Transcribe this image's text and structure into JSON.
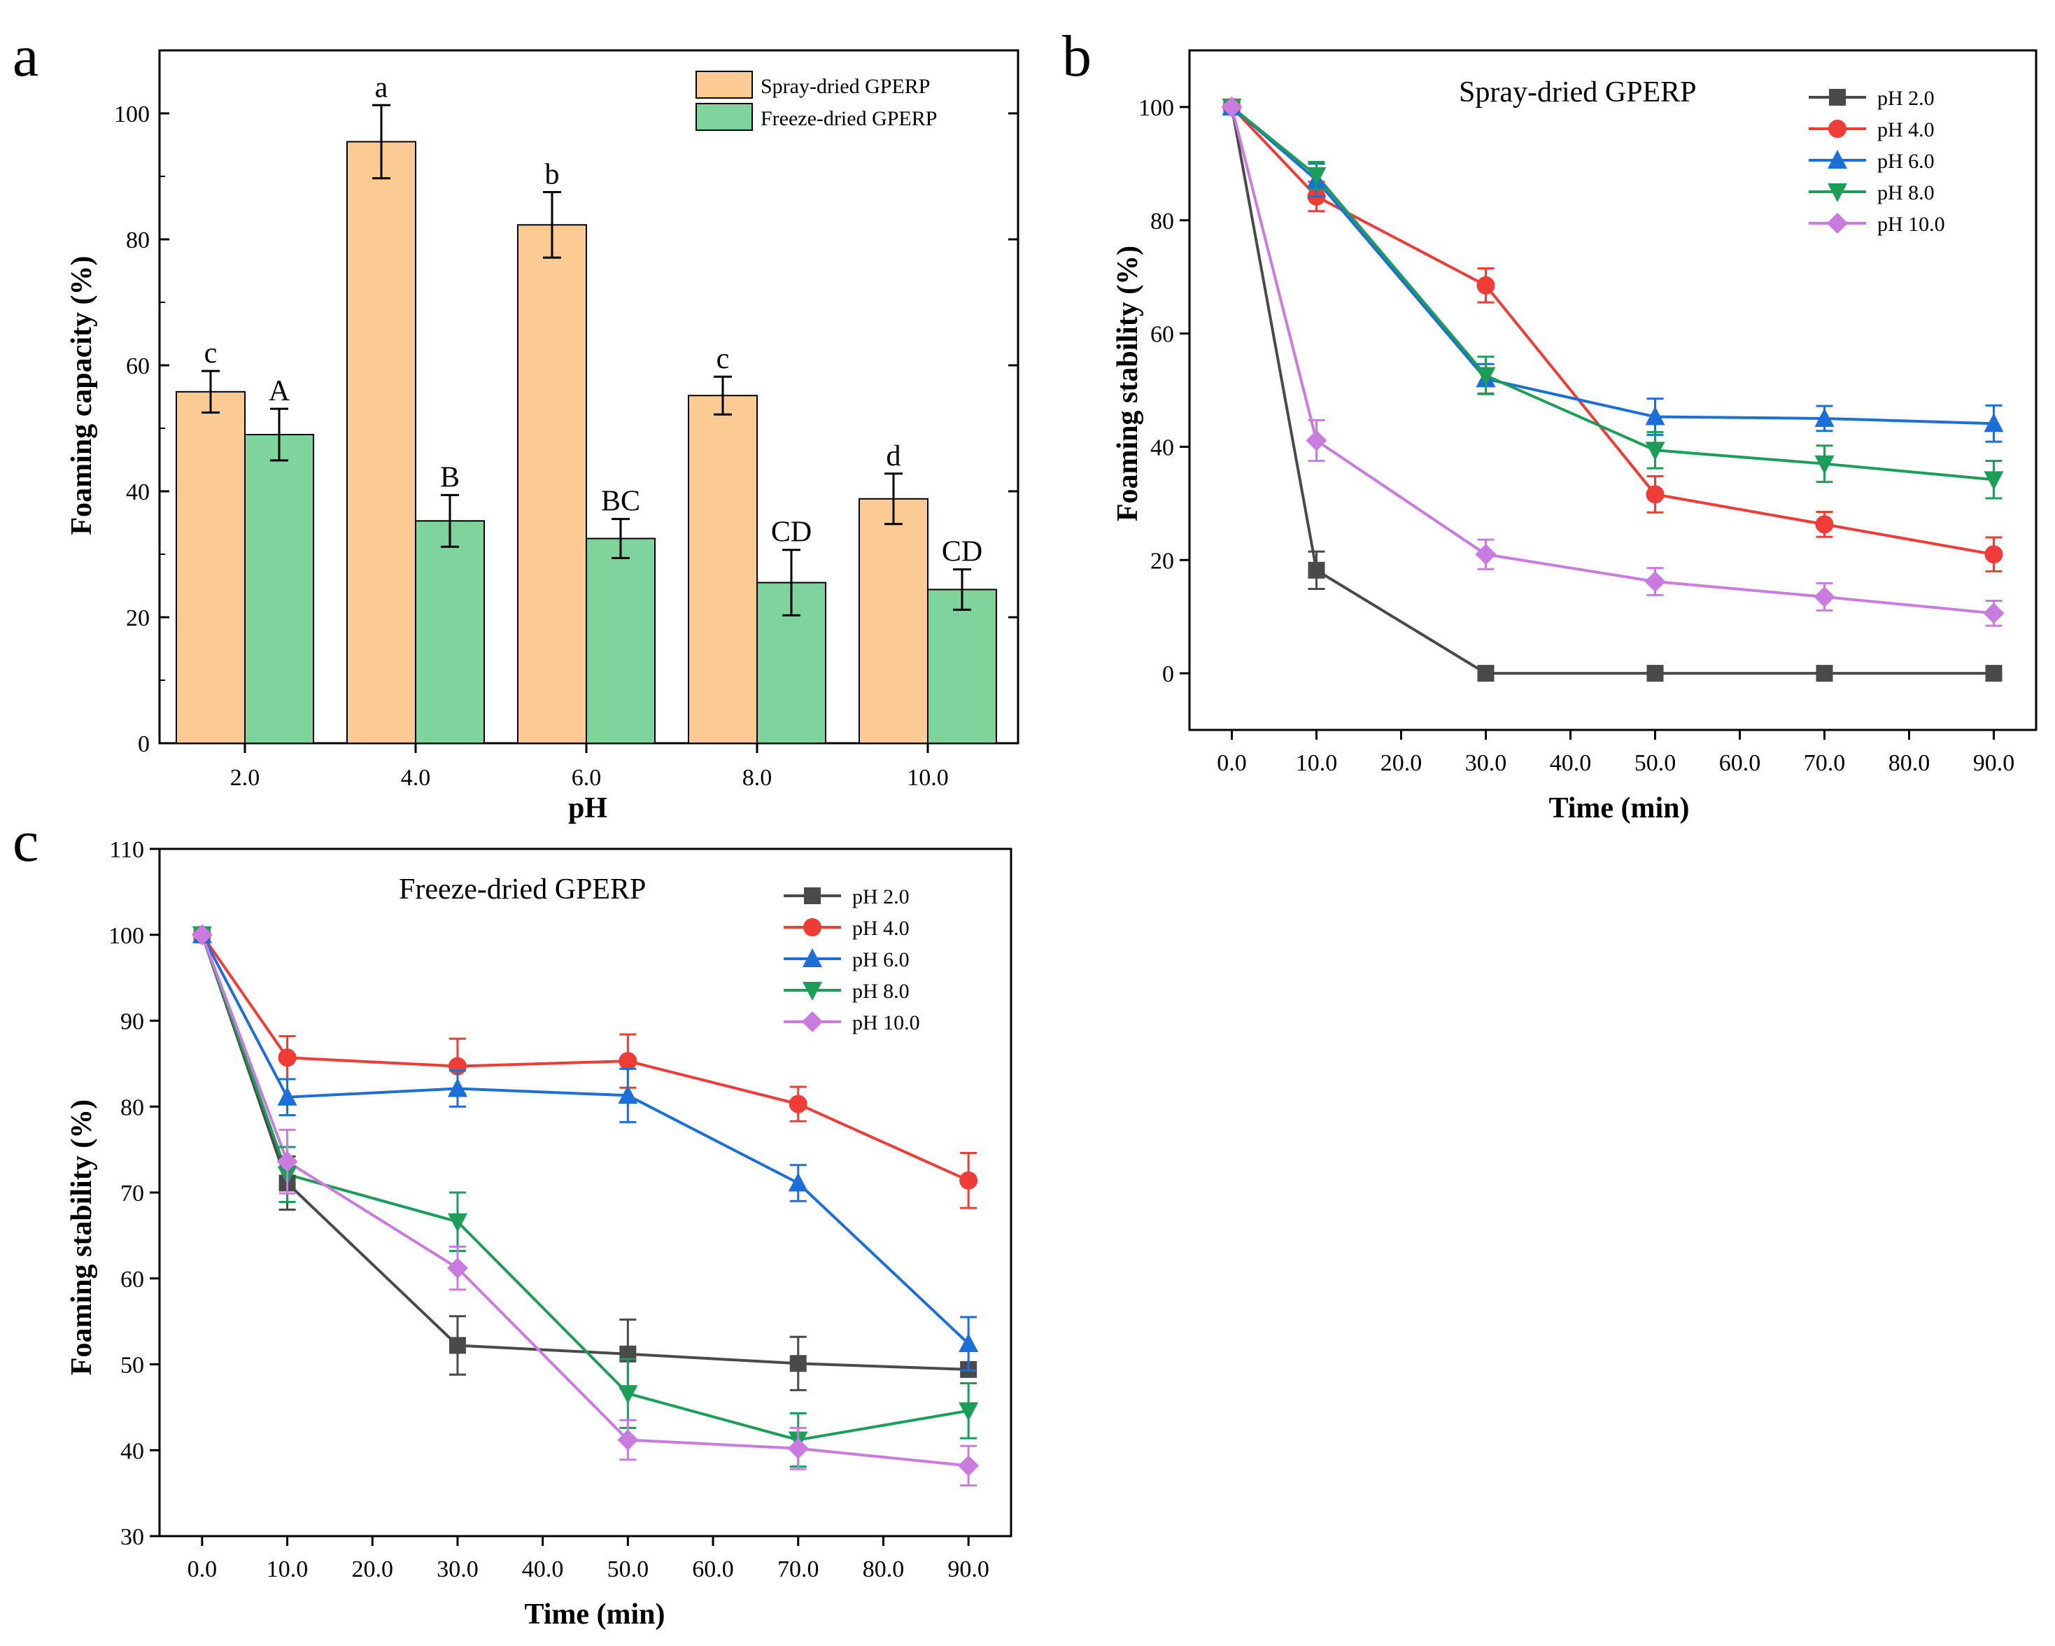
{
  "chart_data": [
    {
      "panel": "a",
      "type": "bar",
      "xlabel": "pH",
      "ylabel": "Foaming capacity (%)",
      "ylim": [
        0,
        110
      ],
      "yticks": [
        "0",
        "20",
        "40",
        "60",
        "80",
        "100"
      ],
      "categories": [
        "2.0",
        "4.0",
        "6.0",
        "8.0",
        "10.0"
      ],
      "series": [
        {
          "name": "Spray-dried GPERP",
          "color": "#FCCB93",
          "values": [
            55.8,
            95.5,
            82.3,
            55.2,
            38.8
          ],
          "errors": [
            3.3,
            5.8,
            5.2,
            3.0,
            4.0
          ],
          "labels": [
            "c",
            "a",
            "b",
            "c",
            "d"
          ]
        },
        {
          "name": "Freeze-dried GPERP",
          "color": "#7ED49A",
          "values": [
            49.0,
            35.3,
            32.5,
            25.5,
            24.4
          ],
          "errors": [
            4.1,
            4.1,
            3.1,
            5.2,
            3.2
          ],
          "labels": [
            "A",
            "B",
            "BC",
            "CD",
            "CD"
          ]
        }
      ],
      "legend": "top-right"
    },
    {
      "panel": "b",
      "type": "line",
      "title": "Spray-dried GPERP",
      "xlabel": "Time (min)",
      "ylabel": "Foaming stability (%)",
      "xlim": [
        -5,
        95
      ],
      "ylim": [
        -10,
        110
      ],
      "xticks": [
        "0.0",
        "10.0",
        "20.0",
        "30.0",
        "40.0",
        "50.0",
        "60.0",
        "70.0",
        "80.0",
        "90.0"
      ],
      "yticks": [
        "0",
        "20",
        "40",
        "60",
        "80",
        "100"
      ],
      "x": [
        0,
        10,
        30,
        50,
        70,
        90
      ],
      "series": [
        {
          "name": "pH 2.0",
          "color": "#4A4A4A",
          "marker": "square",
          "values": [
            100,
            18.2,
            0,
            0,
            0,
            0
          ],
          "errors": [
            0,
            3.3,
            0,
            0,
            0,
            0
          ]
        },
        {
          "name": "pH 4.0",
          "color": "#F03C36",
          "marker": "circle",
          "values": [
            100,
            84.2,
            68.5,
            31.6,
            26.3,
            21.0
          ],
          "errors": [
            0,
            2.6,
            3.0,
            3.2,
            2.2,
            3.0
          ]
        },
        {
          "name": "pH 6.0",
          "color": "#1C6FD9",
          "marker": "triangle-up",
          "values": [
            100,
            87.1,
            52.0,
            45.3,
            45.0,
            44.1
          ],
          "errors": [
            0,
            2.9,
            2.6,
            3.2,
            2.2,
            3.2
          ]
        },
        {
          "name": "pH 8.0",
          "color": "#1D9E58",
          "marker": "triangle-down",
          "values": [
            100,
            87.9,
            52.6,
            39.4,
            37.0,
            34.2
          ],
          "errors": [
            0,
            2.4,
            3.3,
            3.2,
            3.2,
            3.3
          ]
        },
        {
          "name": "pH 10.0",
          "color": "#C97BE0",
          "marker": "diamond",
          "values": [
            100,
            41.1,
            21.0,
            16.2,
            13.5,
            10.6
          ],
          "errors": [
            0,
            3.6,
            2.6,
            2.4,
            2.4,
            2.2
          ]
        }
      ],
      "legend": "top-right"
    },
    {
      "panel": "c",
      "type": "line",
      "title": "Freeze-dried GPERP",
      "xlabel": "Time (min)",
      "ylabel": "Foaming stability (%)",
      "xlim": [
        -5,
        95
      ],
      "ylim": [
        30,
        110
      ],
      "xticks": [
        "0.0",
        "10.0",
        "20.0",
        "30.0",
        "40.0",
        "50.0",
        "60.0",
        "70.0",
        "80.0",
        "90.0"
      ],
      "yticks": [
        "30",
        "40",
        "50",
        "60",
        "70",
        "80",
        "90",
        "100",
        "110"
      ],
      "x": [
        0,
        10,
        30,
        50,
        70,
        90
      ],
      "series": [
        {
          "name": "pH 2.0",
          "color": "#4A4A4A",
          "marker": "square",
          "values": [
            100,
            71.1,
            52.2,
            51.2,
            50.1,
            49.4
          ],
          "errors": [
            0,
            3.1,
            3.4,
            4.0,
            3.1,
            0
          ]
        },
        {
          "name": "pH 4.0",
          "color": "#F03C36",
          "marker": "circle",
          "values": [
            100,
            85.7,
            84.7,
            85.3,
            80.3,
            71.4
          ],
          "errors": [
            0,
            2.5,
            3.2,
            3.1,
            2.0,
            3.2
          ]
        },
        {
          "name": "pH 6.0",
          "color": "#1C6FD9",
          "marker": "triangle-up",
          "values": [
            100,
            81.1,
            82.1,
            81.3,
            71.1,
            52.4
          ],
          "errors": [
            0,
            2.1,
            2.1,
            3.1,
            2.1,
            3.1
          ]
        },
        {
          "name": "pH 8.0",
          "color": "#1D9E58",
          "marker": "triangle-down",
          "values": [
            100,
            72.1,
            66.6,
            46.6,
            41.2,
            44.6
          ],
          "errors": [
            0,
            3.2,
            3.4,
            4.0,
            3.1,
            3.2
          ]
        },
        {
          "name": "pH 10.0",
          "color": "#C97BE0",
          "marker": "diamond",
          "values": [
            100,
            73.6,
            61.2,
            41.2,
            40.2,
            38.2
          ],
          "errors": [
            0,
            3.7,
            2.5,
            2.3,
            2.4,
            2.3
          ]
        }
      ],
      "legend": "top-right"
    }
  ]
}
